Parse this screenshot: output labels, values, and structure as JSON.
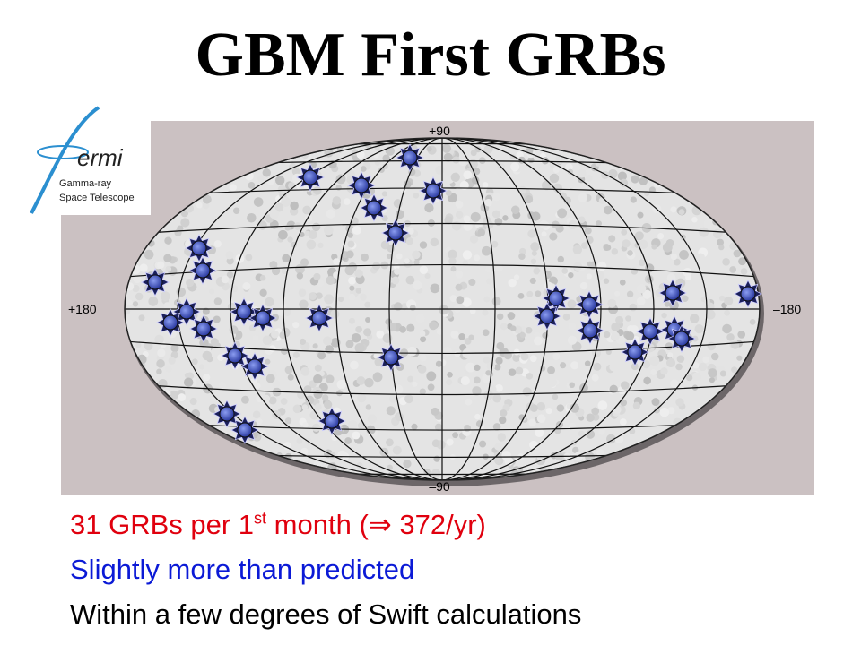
{
  "title": "GBM First GRBs",
  "logo": {
    "wordmark": "ermi",
    "line1": "Gamma-ray",
    "line2": "Space Telescope"
  },
  "sky_map": {
    "top_label": "+90",
    "bottom_label": "–90",
    "left_label": "+180",
    "right_label": "–180"
  },
  "bullets": [
    {
      "text": "31 GRBs per 1",
      "superscript": "st",
      "rest": " month (⇒ 372/yr)"
    },
    {
      "text": "Slightly more than predicted"
    },
    {
      "text": "Within a few degrees of Swift calculations"
    }
  ]
}
